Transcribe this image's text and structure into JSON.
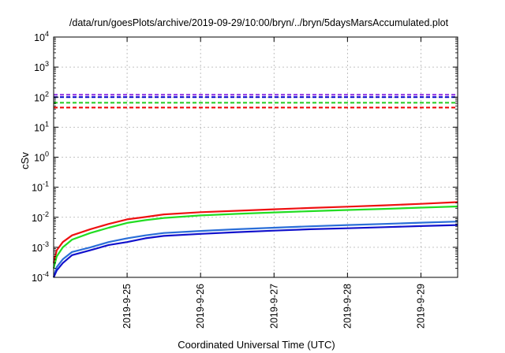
{
  "chart_data": {
    "type": "line",
    "title": "/data/run/goesPlots/archive/2019-09-29/10:00/bryn/../bryn/5daysMarsAccumulated.plot",
    "xlabel": "Coordinated Universal Time (UTC)",
    "ylabel": "cSv",
    "yscale": "log",
    "ylim": [
      0.0001,
      10000
    ],
    "xlim": [
      "2019-09-24 00:00",
      "2019-09-29 12:00"
    ],
    "grid": true,
    "y_ticks": [
      {
        "base": "10",
        "exp": "-4"
      },
      {
        "base": "10",
        "exp": "-3"
      },
      {
        "base": "10",
        "exp": "-2"
      },
      {
        "base": "10",
        "exp": "-1"
      },
      {
        "base": "10",
        "exp": "0"
      },
      {
        "base": "10",
        "exp": "1"
      },
      {
        "base": "10",
        "exp": "2"
      },
      {
        "base": "10",
        "exp": "3"
      },
      {
        "base": "10",
        "exp": "4"
      }
    ],
    "x_ticks": [
      {
        "date": "2019-09-25 00:00",
        "label": "2019-9-25"
      },
      {
        "date": "2019-09-26 00:00",
        "label": "2019-9-26"
      },
      {
        "date": "2019-09-27 00:00",
        "label": "2019-9-27"
      },
      {
        "date": "2019-09-28 00:00",
        "label": "2019-9-28"
      },
      {
        "date": "2019-09-29 00:00",
        "label": "2019-9-29"
      }
    ],
    "thresholds": [
      {
        "color": "#8a2be2",
        "y": 120
      },
      {
        "color": "#0000cc",
        "y": 100
      },
      {
        "color": "#22cc22",
        "y": 65
      },
      {
        "color": "#ee0000",
        "y": 45
      }
    ],
    "series": [
      {
        "color": "#ee1111",
        "x": [
          "2019-09-24 00:00",
          "2019-09-24 01:00",
          "2019-09-24 03:00",
          "2019-09-24 06:00",
          "2019-09-24 12:00",
          "2019-09-24 18:00",
          "2019-09-25 00:00",
          "2019-09-25 06:00",
          "2019-09-25 12:00",
          "2019-09-26 00:00",
          "2019-09-26 12:00",
          "2019-09-27 00:00",
          "2019-09-27 12:00",
          "2019-09-28 00:00",
          "2019-09-28 12:00",
          "2019-09-29 00:00",
          "2019-09-29 12:00"
        ],
        "values": [
          0.0003,
          0.0008,
          0.0015,
          0.0025,
          0.004,
          0.006,
          0.0085,
          0.0102,
          0.0125,
          0.0148,
          0.0165,
          0.0185,
          0.0205,
          0.0225,
          0.025,
          0.028,
          0.032
        ]
      },
      {
        "color": "#22dd22",
        "x": [
          "2019-09-24 00:00",
          "2019-09-24 01:00",
          "2019-09-24 03:00",
          "2019-09-24 06:00",
          "2019-09-24 12:00",
          "2019-09-24 18:00",
          "2019-09-25 00:00",
          "2019-09-25 06:00",
          "2019-09-25 12:00",
          "2019-09-26 00:00",
          "2019-09-26 12:00",
          "2019-09-27 00:00",
          "2019-09-27 12:00",
          "2019-09-28 00:00",
          "2019-09-28 12:00",
          "2019-09-29 00:00",
          "2019-09-29 12:00"
        ],
        "values": [
          0.0002,
          0.0005,
          0.001,
          0.0018,
          0.003,
          0.0045,
          0.0065,
          0.008,
          0.0095,
          0.0115,
          0.013,
          0.0145,
          0.016,
          0.0175,
          0.019,
          0.021,
          0.023
        ]
      },
      {
        "color": "#2a6ed8",
        "x": [
          "2019-09-24 00:00",
          "2019-09-24 01:00",
          "2019-09-24 03:00",
          "2019-09-24 06:00",
          "2019-09-24 12:00",
          "2019-09-24 18:00",
          "2019-09-25 00:00",
          "2019-09-25 06:00",
          "2019-09-25 12:00",
          "2019-09-26 00:00",
          "2019-09-26 12:00",
          "2019-09-27 00:00",
          "2019-09-27 12:00",
          "2019-09-28 00:00",
          "2019-09-28 12:00",
          "2019-09-29 00:00",
          "2019-09-29 12:00"
        ],
        "values": [
          0.0001,
          0.00022,
          0.0004,
          0.0007,
          0.001,
          0.0015,
          0.002,
          0.0025,
          0.003,
          0.0035,
          0.004,
          0.0045,
          0.005,
          0.0055,
          0.006,
          0.0066,
          0.0072
        ]
      },
      {
        "color": "#1111cc",
        "x": [
          "2019-09-24 00:00",
          "2019-09-24 01:00",
          "2019-09-24 03:00",
          "2019-09-24 06:00",
          "2019-09-24 12:00",
          "2019-09-24 18:00",
          "2019-09-25 00:00",
          "2019-09-25 06:00",
          "2019-09-25 12:00",
          "2019-09-26 00:00",
          "2019-09-26 12:00",
          "2019-09-27 00:00",
          "2019-09-27 12:00",
          "2019-09-28 00:00",
          "2019-09-28 12:00",
          "2019-09-29 00:00",
          "2019-09-29 12:00"
        ],
        "values": [
          8e-05,
          0.00017,
          0.0003,
          0.00055,
          0.0008,
          0.0012,
          0.0015,
          0.002,
          0.0024,
          0.0028,
          0.0032,
          0.0036,
          0.004,
          0.0043,
          0.0047,
          0.0051,
          0.0055
        ]
      }
    ]
  }
}
